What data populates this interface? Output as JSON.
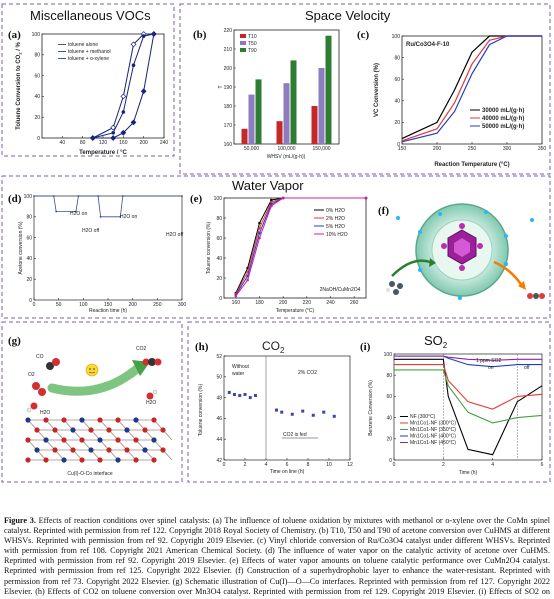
{
  "sections": {
    "misc": "Miscellaneous VOCs",
    "space": "Space Velocity",
    "water": "Water Vapor",
    "so2": "SO",
    "so2_sub": "2"
  },
  "panels": {
    "a": {
      "label": "(a)",
      "ylabel": "Toluene Conversion to CO",
      "ylabel_sub": "2",
      "ylabel_unit": " / %",
      "xlabel": "Temperature / °C",
      "legend": [
        "toluene alone",
        "toluene + methanol",
        "toluene + o-xylene"
      ]
    },
    "b": {
      "label": "(b)",
      "xlabel": "WHSV (mL/(g",
      "xlabel_tail": "·h))",
      "ylabel": "T",
      "legend": [
        "T10",
        "T50",
        "T90"
      ]
    },
    "c": {
      "label": "(c)",
      "ylabel": "VC Conversion (%)",
      "xlabel": "Reaction Temperature (°C)",
      "catalyst": "Ru/Co3O4-F-10",
      "legend": [
        "30000 mL/(g·h)",
        "40000 mL/(g·h)",
        "50000 mL/(g·h)"
      ]
    },
    "d": {
      "label": "(d)",
      "ylabel": "Acetone conversion (%)",
      "xlabel": "Reaction time (h)",
      "annotations": [
        "H2O on",
        "H2O off",
        "H2O on",
        "H2O off"
      ]
    },
    "e": {
      "label": "(e)",
      "ylabel": "Toluene conversion (%)",
      "xlabel": "Temperature (°C)",
      "catalyst": "2NaOH/CuMn2O4",
      "legend": [
        "0% H2O",
        "2% H2O",
        "5% H2O",
        "10% H2O"
      ]
    },
    "f": {
      "label": "(f)"
    },
    "g": {
      "label": "(g)",
      "interface": "Cu(I)-O-Co interface",
      "molecules": [
        "CO",
        "O2",
        "H2O",
        "CO2",
        "H2O"
      ]
    },
    "h": {
      "label": "(h)",
      "title": "CO",
      "title_sub": "2",
      "ylabel": "Toluene conversion (%)",
      "xlabel": "Time on line (h)",
      "without": "Without",
      "water": "water",
      "co2pct": "2% CO2",
      "fed": "CO2 is fed"
    },
    "i": {
      "label": "(i)",
      "ylabel": "Benzene Conversion (%)",
      "xlabel": "Time (h)",
      "ppm": "1 ppm SO2",
      "on": "on",
      "off": "off",
      "legend": [
        "NF (300°C)",
        "Mn1Co1-NF (300°C)",
        "Mn1Co1-NF (350°C)",
        "Mn1Co1-NF (400°C)",
        "Mn1Co1-NF (450°C)"
      ]
    }
  },
  "chart_data": [
    {
      "panel": "a",
      "type": "line",
      "xlabel": "Temperature / °C",
      "xlim": [
        0,
        240
      ],
      "ylim": [
        0,
        100
      ],
      "series": [
        {
          "name": "toluene alone",
          "x": [
            100,
            140,
            160,
            180,
            200,
            220
          ],
          "y": [
            0,
            10,
            40,
            90,
            100,
            100
          ]
        },
        {
          "name": "toluene + methanol",
          "x": [
            100,
            140,
            160,
            180,
            200,
            220
          ],
          "y": [
            0,
            5,
            25,
            70,
            98,
            100
          ]
        },
        {
          "name": "toluene + o-xylene",
          "x": [
            100,
            140,
            160,
            180,
            200,
            220
          ],
          "y": [
            0,
            0,
            5,
            15,
            45,
            100
          ]
        }
      ]
    },
    {
      "panel": "b",
      "type": "bar",
      "categories": [
        "50,000",
        "100,000",
        "150,000"
      ],
      "ylim": [
        160,
        220
      ],
      "series": [
        {
          "name": "T10",
          "values": [
            168,
            172,
            180
          ]
        },
        {
          "name": "T50",
          "values": [
            186,
            192,
            200
          ]
        },
        {
          "name": "T90",
          "values": [
            194,
            204,
            217
          ]
        }
      ]
    },
    {
      "panel": "c",
      "type": "line",
      "xlim": [
        150,
        350
      ],
      "ylim": [
        0,
        100
      ],
      "series": [
        {
          "name": "30000 mL/(g·h)",
          "x": [
            150,
            200,
            225,
            250,
            275,
            300,
            350
          ],
          "y": [
            5,
            20,
            50,
            85,
            100,
            100,
            100
          ]
        },
        {
          "name": "40000 mL/(g·h)",
          "x": [
            150,
            200,
            225,
            250,
            275,
            300,
            350
          ],
          "y": [
            3,
            14,
            38,
            74,
            96,
            100,
            100
          ]
        },
        {
          "name": "50000 mL/(g·h)",
          "x": [
            150,
            200,
            225,
            250,
            275,
            300,
            350
          ],
          "y": [
            2,
            10,
            30,
            65,
            92,
            100,
            100
          ]
        }
      ]
    },
    {
      "panel": "d",
      "type": "line",
      "xlim": [
        0,
        300
      ],
      "ylim": [
        0,
        100
      ],
      "series": [
        {
          "name": "acetone",
          "x": [
            0,
            40,
            45,
            85,
            90,
            130,
            135,
            175,
            180,
            300
          ],
          "y": [
            100,
            100,
            85,
            85,
            100,
            100,
            80,
            80,
            100,
            100
          ]
        }
      ]
    },
    {
      "panel": "e",
      "type": "line",
      "xlim": [
        150,
        270
      ],
      "ylim": [
        0,
        100
      ],
      "series": [
        {
          "name": "0% H2O",
          "x": [
            160,
            170,
            180,
            190,
            200,
            270
          ],
          "y": [
            5,
            30,
            75,
            98,
            100,
            100
          ]
        },
        {
          "name": "2% H2O",
          "x": [
            160,
            170,
            180,
            190,
            200,
            270
          ],
          "y": [
            4,
            26,
            70,
            96,
            100,
            100
          ]
        },
        {
          "name": "5% H2O",
          "x": [
            160,
            170,
            180,
            190,
            200,
            270
          ],
          "y": [
            3,
            22,
            65,
            94,
            100,
            100
          ]
        },
        {
          "name": "10% H2O",
          "x": [
            160,
            170,
            180,
            190,
            200,
            270
          ],
          "y": [
            2,
            18,
            60,
            92,
            100,
            100
          ]
        }
      ]
    },
    {
      "panel": "h",
      "type": "scatter",
      "xlim": [
        0,
        12
      ],
      "ylim": [
        42,
        52
      ],
      "series": [
        {
          "name": "Without water",
          "x": [
            0.5,
            1,
            1.5,
            2,
            2.5,
            3
          ],
          "y": [
            48.5,
            48.3,
            48.2,
            48.3,
            48.0,
            48.2
          ]
        },
        {
          "name": "2% CO2",
          "x": [
            5,
            5.5,
            6.5,
            7.5,
            8.5,
            9.5,
            10.5
          ],
          "y": [
            46.8,
            46.6,
            46.4,
            46.7,
            46.3,
            46.6,
            46.2
          ]
        }
      ]
    },
    {
      "panel": "i",
      "type": "line",
      "xlim": [
        0,
        6
      ],
      "ylim": [
        0,
        100
      ],
      "series": [
        {
          "name": "NF (300°C)",
          "x": [
            0,
            2,
            2.2,
            3,
            4,
            5,
            6
          ],
          "y": [
            95,
            95,
            60,
            10,
            5,
            55,
            70
          ]
        },
        {
          "name": "Mn1Co1-NF (300°C)",
          "x": [
            0,
            2,
            2.2,
            3,
            4,
            5,
            6
          ],
          "y": [
            90,
            90,
            75,
            55,
            48,
            60,
            62
          ]
        },
        {
          "name": "Mn1Co1-NF (350°C)",
          "x": [
            0,
            2,
            2.2,
            3,
            4,
            5,
            6
          ],
          "y": [
            85,
            85,
            70,
            45,
            35,
            40,
            42
          ]
        },
        {
          "name": "Mn1Co1-NF (400°C)",
          "x": [
            0,
            2,
            2.2,
            3,
            4,
            5,
            6
          ],
          "y": [
            98,
            98,
            96,
            90,
            88,
            90,
            90
          ]
        },
        {
          "name": "Mn1Co1-NF (450°C)",
          "x": [
            0,
            2,
            2.2,
            3,
            4,
            5,
            6
          ],
          "y": [
            98,
            98,
            97,
            95,
            94,
            95,
            95
          ]
        }
      ]
    }
  ],
  "caption": {
    "lead": "Figure 3.",
    "text": " Effects of reaction conditions over spinel catalysts: (a) The influence of toluene oxidation by mixtures with methanol or o-xylene over the CoMn spinel catalyst. Reprinted with permission from ref 122. Copyright 2018 Royal Society of Chemistry. (b) T10, T50 and T90 of acetone conversion over CuHMS at different WHSVs. Reprinted with permission from ref 92. Copyright 2019 Elsevier. (c) Vinyl chloride conversion of Ru/Co3O4 catalyst under different WHSVs. Reprinted with permission from ref 108. Copyright 2021 American Chemical Society. (d) The influence of water vapor on the catalytic activity of acetone over CuHMS. Reprinted with permission from ref 92. Copyright 2019 Elsevier. (e) Effects of water vapor amounts on toluene catalytic performance over CuMn2O4 catalyst. Reprinted with permission from ref 125. Copyright 2022 Elsevier. (f) Construction of a superhydrophobic layer to enhance the water-resistant. Reprinted with permission from ref 73. Copyright 2022 Elsevier. (g) Schematic illustration of Cu(I)—O—Co interfaces. Reprinted with permission from ref 127. Copyright 2022 Elsevier. (h) Effects of CO2 on toluene conversion over Mn3O4 catalyst. Reprinted with permission from ref 129. Copyright 2019 Elsevier. (i) Effects of SO2 on benzene conversion over MnCo spinel catalyst. Reprinted with permission from ref 68. Copyright 2023 Royal Society of Chemistry."
  },
  "colors": {
    "frame": "#7c5ca8",
    "t10": "#c62828",
    "t50": "#8e7cc3",
    "t90": "#2e7d32",
    "black": "#000000",
    "red": "#e53935",
    "blue": "#1e40c8",
    "magenta": "#d81b9b",
    "purple": "#8e24aa",
    "green": "#43a047"
  }
}
